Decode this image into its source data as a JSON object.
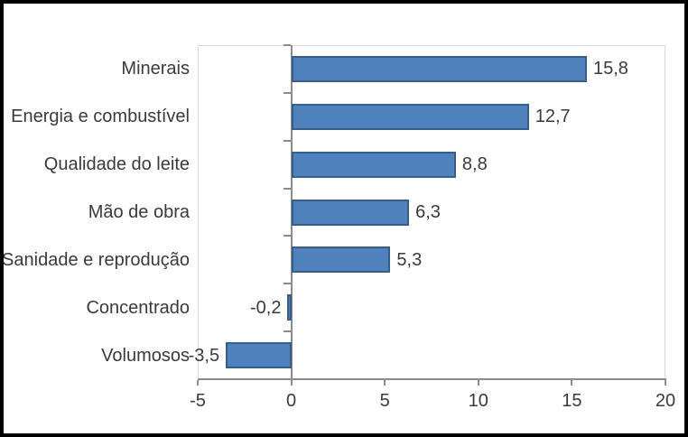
{
  "chart_data": {
    "type": "bar",
    "orientation": "horizontal",
    "title": "",
    "categories": [
      "Minerais",
      "Energia e combustível",
      "Qualidade do leite",
      "Mão de obra",
      "Sanidade e reprodução",
      "Concentrado",
      "Volumosos"
    ],
    "values": [
      15.8,
      12.7,
      8.8,
      6.3,
      5.3,
      -0.2,
      -3.5
    ],
    "value_labels": [
      "15,8",
      "12,7",
      "8,8",
      "6,3",
      "5,3",
      "-0,2",
      "-3,5"
    ],
    "x_ticks": [
      -5,
      0,
      5,
      10,
      15,
      20
    ],
    "x_tick_labels": [
      "-5",
      "0",
      "5",
      "10",
      "15",
      "20"
    ],
    "xlim": [
      -5,
      20
    ],
    "grid": false,
    "legend": false,
    "colors": {
      "bar_fill": "#4F81BD",
      "bar_border": "#385D8A",
      "axis_line": "#8C8C8C",
      "plot_border": "#D9D9D9",
      "text": "#3A3A3A",
      "frame_border": "#000000",
      "background": "#FFFFFF"
    }
  }
}
